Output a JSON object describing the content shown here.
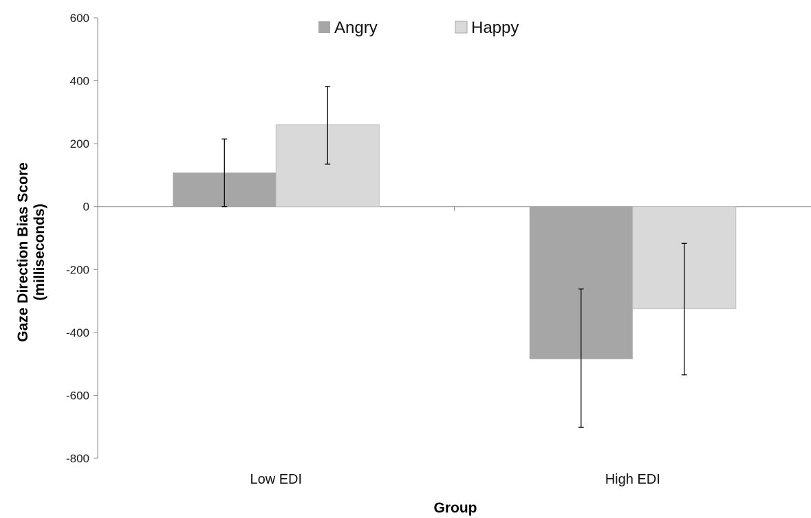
{
  "chart_data": {
    "type": "bar",
    "title": "",
    "xlabel": "Group",
    "ylabel_line1": "Gaze Direction Bias Score",
    "ylabel_line2": "(milliseconds)",
    "categories": [
      "Low EDI",
      "High EDI"
    ],
    "ylim": [
      -800,
      600
    ],
    "yticks": [
      "600",
      "400",
      "200",
      "0",
      "-200",
      "-400",
      "-600",
      "-800"
    ],
    "legend_position": "top",
    "series": [
      {
        "name": "Angry",
        "color": "#a6a6a6",
        "values": [
          108,
          -485
        ],
        "error_low": [
          0,
          -702
        ],
        "error_high": [
          215,
          -262
        ]
      },
      {
        "name": "Happy",
        "color": "#d9d9d9",
        "values": [
          260,
          -325
        ],
        "error_low": [
          135,
          -535
        ],
        "error_high": [
          382,
          -117
        ]
      }
    ]
  }
}
